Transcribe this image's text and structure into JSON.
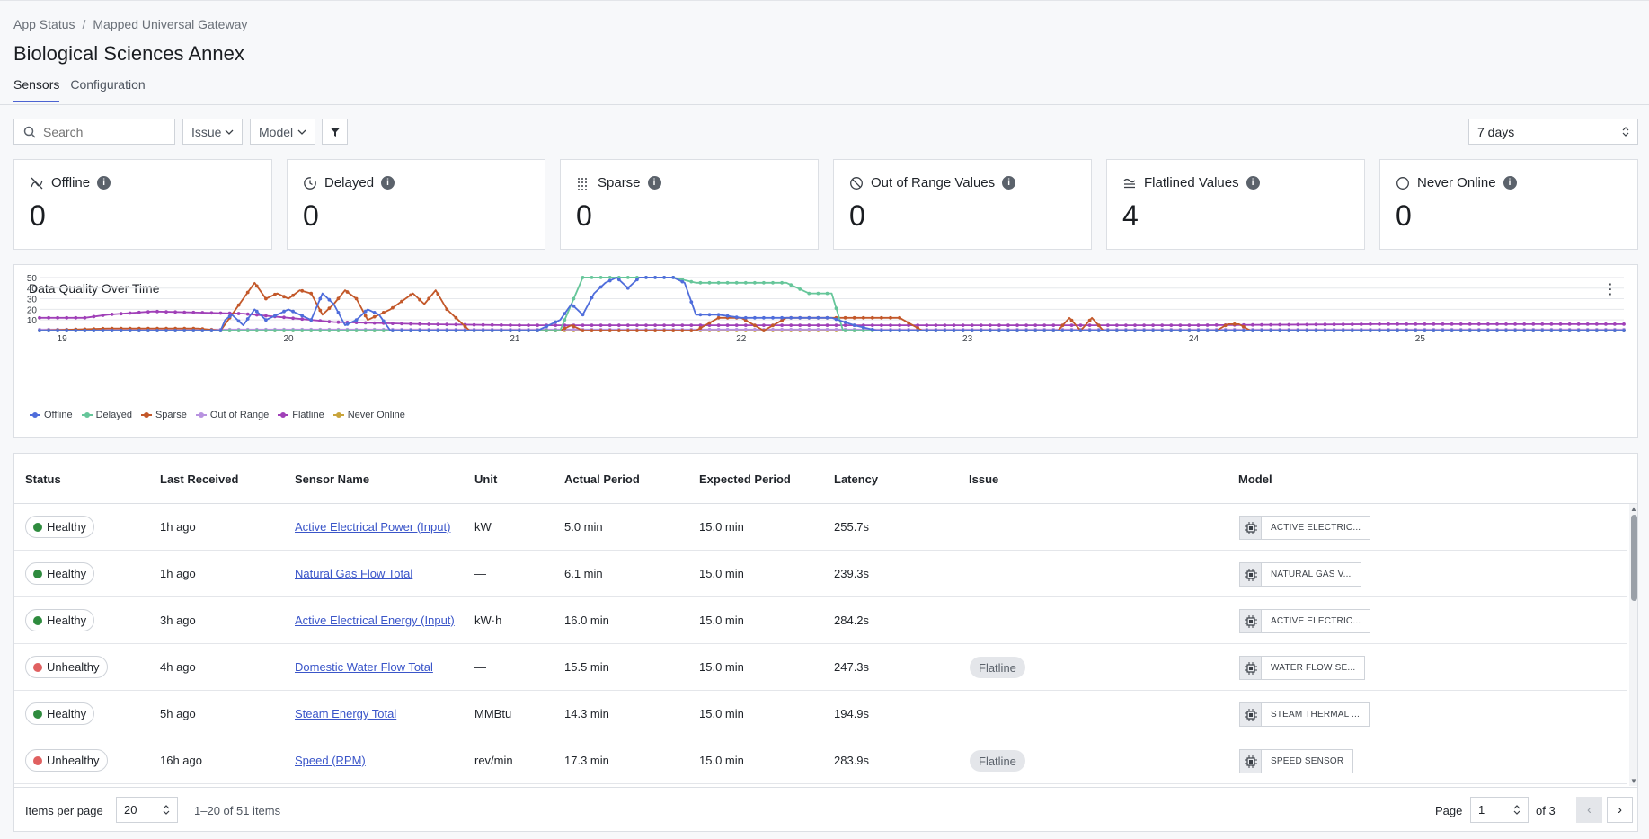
{
  "breadcrumb": {
    "root": "App Status",
    "separator": "/",
    "current": "Mapped Universal Gateway"
  },
  "page_title": "Biological Sciences Annex",
  "tabs": [
    {
      "label": "Sensors",
      "active": true
    },
    {
      "label": "Configuration",
      "active": false
    }
  ],
  "filters": {
    "search_placeholder": "Search",
    "issue_label": "Issue",
    "model_label": "Model",
    "time_range": "7 days"
  },
  "cards": [
    {
      "label": "Offline",
      "value": "0",
      "icon": "offline-icon"
    },
    {
      "label": "Delayed",
      "value": "0",
      "icon": "clock-icon"
    },
    {
      "label": "Sparse",
      "value": "0",
      "icon": "sparse-grid-icon"
    },
    {
      "label": "Out of Range Values",
      "value": "0",
      "icon": "prohibited-icon"
    },
    {
      "label": "Flatlined Values",
      "value": "4",
      "icon": "flatline-icon"
    },
    {
      "label": "Never Online",
      "value": "0",
      "icon": "circle-icon"
    }
  ],
  "chart": {
    "title": "Data Quality Over Time",
    "y_ticks": [
      "50",
      "40",
      "30",
      "20",
      "10"
    ],
    "x_ticks": [
      "19",
      "20",
      "21",
      "22",
      "23",
      "24",
      "25"
    ],
    "legend": [
      {
        "name": "Offline",
        "color": "#4f6ddb"
      },
      {
        "name": "Delayed",
        "color": "#66c69a"
      },
      {
        "name": "Sparse",
        "color": "#c3582a"
      },
      {
        "name": "Out of Range",
        "color": "#b893e0"
      },
      {
        "name": "Flatline",
        "color": "#a040b8"
      },
      {
        "name": "Never Online",
        "color": "#c9a43b"
      }
    ]
  },
  "chart_data": {
    "type": "line",
    "title": "Data Quality Over Time",
    "xlabel": "",
    "ylabel": "",
    "ylim": [
      0,
      55
    ],
    "xlim": [
      18.9,
      25.9
    ],
    "x_tick_labels": [
      "19",
      "20",
      "21",
      "22",
      "23",
      "24",
      "25"
    ],
    "legend_position": "bottom-left",
    "grid": true,
    "series": [
      {
        "name": "Offline",
        "color": "#4f6ddb",
        "points": [
          [
            18.9,
            0
          ],
          [
            19.7,
            0
          ],
          [
            19.72,
            10
          ],
          [
            19.75,
            15
          ],
          [
            19.8,
            5
          ],
          [
            19.85,
            20
          ],
          [
            19.9,
            10
          ],
          [
            19.95,
            15
          ],
          [
            20.0,
            20
          ],
          [
            20.05,
            15
          ],
          [
            20.1,
            10
          ],
          [
            20.15,
            35
          ],
          [
            20.2,
            25
          ],
          [
            20.25,
            5
          ],
          [
            20.3,
            10
          ],
          [
            20.35,
            20
          ],
          [
            20.4,
            15
          ],
          [
            20.45,
            0
          ],
          [
            21.1,
            0
          ],
          [
            21.2,
            10
          ],
          [
            21.25,
            25
          ],
          [
            21.3,
            15
          ],
          [
            21.35,
            35
          ],
          [
            21.4,
            45
          ],
          [
            21.45,
            50
          ],
          [
            21.5,
            40
          ],
          [
            21.55,
            50
          ],
          [
            21.6,
            50
          ],
          [
            21.7,
            50
          ],
          [
            21.75,
            45
          ],
          [
            21.8,
            15
          ],
          [
            21.9,
            15
          ],
          [
            22.0,
            12
          ],
          [
            22.4,
            12
          ],
          [
            22.5,
            5
          ],
          [
            22.6,
            0
          ],
          [
            25.9,
            0
          ]
        ]
      },
      {
        "name": "Delayed",
        "color": "#66c69a",
        "points": [
          [
            18.9,
            0
          ],
          [
            21.2,
            0
          ],
          [
            21.25,
            25
          ],
          [
            21.3,
            50
          ],
          [
            21.7,
            50
          ],
          [
            21.8,
            45
          ],
          [
            22.2,
            45
          ],
          [
            22.3,
            35
          ],
          [
            22.4,
            35
          ],
          [
            22.45,
            0
          ],
          [
            25.9,
            0
          ]
        ]
      },
      {
        "name": "Sparse",
        "color": "#c3582a",
        "points": [
          [
            18.9,
            0
          ],
          [
            19.2,
            2
          ],
          [
            19.6,
            2
          ],
          [
            19.7,
            0
          ],
          [
            19.75,
            15
          ],
          [
            19.8,
            30
          ],
          [
            19.85,
            45
          ],
          [
            19.9,
            30
          ],
          [
            19.95,
            35
          ],
          [
            20.0,
            30
          ],
          [
            20.05,
            38
          ],
          [
            20.1,
            35
          ],
          [
            20.15,
            15
          ],
          [
            20.2,
            25
          ],
          [
            20.25,
            38
          ],
          [
            20.3,
            30
          ],
          [
            20.35,
            10
          ],
          [
            20.45,
            20
          ],
          [
            20.55,
            35
          ],
          [
            20.6,
            25
          ],
          [
            20.65,
            38
          ],
          [
            20.7,
            20
          ],
          [
            20.75,
            10
          ],
          [
            20.8,
            0
          ],
          [
            21.2,
            0
          ],
          [
            21.25,
            5
          ],
          [
            21.3,
            0
          ],
          [
            21.8,
            0
          ],
          [
            21.9,
            12
          ],
          [
            22.0,
            12
          ],
          [
            22.1,
            0
          ],
          [
            22.2,
            12
          ],
          [
            22.7,
            12
          ],
          [
            22.8,
            0
          ],
          [
            23.4,
            0
          ],
          [
            23.45,
            12
          ],
          [
            23.5,
            0
          ],
          [
            23.55,
            12
          ],
          [
            23.6,
            0
          ],
          [
            24.1,
            0
          ],
          [
            24.15,
            6
          ],
          [
            24.2,
            6
          ],
          [
            24.25,
            0
          ],
          [
            25.9,
            0
          ]
        ]
      },
      {
        "name": "Out of Range",
        "color": "#b893e0",
        "points": [
          [
            18.9,
            1
          ],
          [
            25.9,
            1
          ]
        ]
      },
      {
        "name": "Flatline",
        "color": "#a040b8",
        "points": [
          [
            18.9,
            12
          ],
          [
            19.1,
            12
          ],
          [
            19.2,
            15
          ],
          [
            19.4,
            18
          ],
          [
            19.8,
            16
          ],
          [
            20.0,
            12
          ],
          [
            20.2,
            8
          ],
          [
            20.6,
            6
          ],
          [
            21.0,
            5
          ],
          [
            22.0,
            5
          ],
          [
            23.0,
            5
          ],
          [
            24.0,
            5
          ],
          [
            24.8,
            6
          ],
          [
            25.5,
            6
          ],
          [
            25.9,
            6
          ]
        ]
      },
      {
        "name": "Never Online",
        "color": "#c9a43b",
        "points": [
          [
            18.9,
            0
          ],
          [
            25.9,
            0
          ]
        ]
      }
    ]
  },
  "table": {
    "columns": [
      "Status",
      "Last Received",
      "Sensor Name",
      "Unit",
      "Actual Period",
      "Expected Period",
      "Latency",
      "Issue",
      "Model"
    ],
    "rows": [
      {
        "status": "Healthy",
        "status_color": "#2e8b3e",
        "last": "1h ago",
        "name": "Active Electrical Power (Input)",
        "unit": "kW",
        "actual": "5.0 min",
        "expected": "15.0 min",
        "latency": "255.7s",
        "issue": "",
        "model": "ACTIVE ELECTRIC..."
      },
      {
        "status": "Healthy",
        "status_color": "#2e8b3e",
        "last": "1h ago",
        "name": "Natural Gas Flow Total",
        "unit": "—",
        "actual": "6.1 min",
        "expected": "15.0 min",
        "latency": "239.3s",
        "issue": "",
        "model": "NATURAL GAS V..."
      },
      {
        "status": "Healthy",
        "status_color": "#2e8b3e",
        "last": "3h ago",
        "name": "Active Electrical Energy (Input)",
        "unit": "kW·h",
        "actual": "16.0 min",
        "expected": "15.0 min",
        "latency": "284.2s",
        "issue": "",
        "model": "ACTIVE ELECTRIC..."
      },
      {
        "status": "Unhealthy",
        "status_color": "#e06060",
        "last": "4h ago",
        "name": "Domestic Water Flow Total",
        "unit": "—",
        "actual": "15.5 min",
        "expected": "15.0 min",
        "latency": "247.3s",
        "issue": "Flatline",
        "model": "WATER FLOW SE..."
      },
      {
        "status": "Healthy",
        "status_color": "#2e8b3e",
        "last": "5h ago",
        "name": "Steam Energy Total",
        "unit": "MMBtu",
        "actual": "14.3 min",
        "expected": "15.0 min",
        "latency": "194.9s",
        "issue": "",
        "model": "STEAM THERMAL ..."
      },
      {
        "status": "Unhealthy",
        "status_color": "#e06060",
        "last": "16h ago",
        "name": "Speed (RPM)",
        "unit": "rev/min",
        "actual": "17.3 min",
        "expected": "15.0 min",
        "latency": "283.9s",
        "issue": "Flatline",
        "model": "SPEED SENSOR"
      }
    ]
  },
  "pagination": {
    "items_per_page_label": "Items per page",
    "items_per_page": "20",
    "range_text": "1–20 of 51 items",
    "page_label": "Page",
    "page": "1",
    "of_label": "of 3"
  }
}
